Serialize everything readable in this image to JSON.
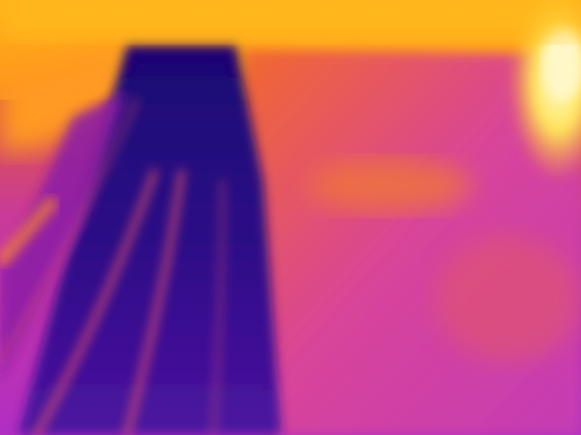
{
  "image": {
    "kind": "thermal-camera-frame",
    "palette": "ironbow",
    "colors": {
      "hottest": "#fff7b0",
      "hot_yellow": "#ffcc1a",
      "warm_orange": "#ff8a1c",
      "mid_orange": "#f2662e",
      "magenta": "#cc33b8",
      "purple": "#8a1fa6",
      "cold_indigo": "#3d0a8c",
      "coldest": "#1a0673",
      "rail_line": "#ff5a6e"
    },
    "scene": {
      "elements": [
        "warm-sky-band",
        "cold-track-corridor",
        "railway-lines",
        "roadside-surface",
        "right-side-building",
        "hot-light-source"
      ]
    }
  }
}
